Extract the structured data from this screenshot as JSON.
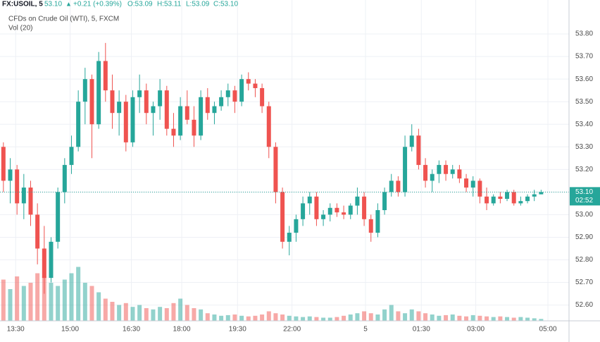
{
  "chart_data": {
    "type": "candlestick",
    "header": {
      "symbol": "FX:USOIL, 5",
      "price": "53.10",
      "change": "+0.21 (+0.39%)",
      "ohlc": [
        "O:53.09",
        "H:53.11",
        "L:53.09",
        "C:53.10"
      ]
    },
    "title": "CFDs on Crude Oil (WTI), 5, FXCM",
    "volume_label": "Vol (20)",
    "up_color": "#26a69a",
    "down_color": "#ef5350",
    "open": [
      53.3,
      53.15,
      53.2,
      53.05,
      53.12,
      53.0,
      52.85,
      52.72,
      52.88,
      53.1,
      53.22,
      53.3,
      53.5,
      53.6,
      53.4,
      53.68,
      53.55,
      53.45,
      53.5,
      53.32,
      53.52,
      53.55,
      53.45,
      53.48,
      53.55,
      53.38,
      53.35,
      53.48,
      53.42,
      53.35,
      53.52,
      53.45,
      53.48,
      53.52,
      53.55,
      53.5,
      53.6,
      53.58,
      53.56,
      53.48,
      53.3,
      53.1,
      52.88,
      52.92,
      52.98,
      53.05,
      53.08,
      52.98,
      53.0,
      53.03,
      53.01,
      53.0,
      53.04,
      53.08,
      52.98,
      52.92,
      53.02,
      53.1,
      53.15,
      53.1,
      53.3,
      53.35,
      53.22,
      53.15,
      53.18,
      53.22,
      53.18,
      53.2,
      53.16,
      53.12,
      53.15,
      53.08,
      53.05,
      53.08,
      53.07,
      53.1,
      53.05,
      53.06,
      53.08,
      53.09
    ],
    "high": [
      53.32,
      53.25,
      53.22,
      53.18,
      53.15,
      53.05,
      52.95,
      52.9,
      53.12,
      53.25,
      53.35,
      53.55,
      53.65,
      53.62,
      53.72,
      53.76,
      53.62,
      53.55,
      53.53,
      53.55,
      53.62,
      53.58,
      53.5,
      53.6,
      53.57,
      53.45,
      53.52,
      53.55,
      53.48,
      53.55,
      53.56,
      53.5,
      53.55,
      53.58,
      53.57,
      53.62,
      53.63,
      53.6,
      53.58,
      53.5,
      53.32,
      53.12,
      52.95,
      53.0,
      53.08,
      53.1,
      53.1,
      53.02,
      53.05,
      53.05,
      53.04,
      53.05,
      53.12,
      53.1,
      53.0,
      53.05,
      53.12,
      53.18,
      53.17,
      53.35,
      53.4,
      53.38,
      53.25,
      53.2,
      53.24,
      53.24,
      53.22,
      53.22,
      53.18,
      53.17,
      53.16,
      53.12,
      53.09,
      53.1,
      53.11,
      53.11,
      53.08,
      53.09,
      53.11,
      53.11
    ],
    "low": [
      53.1,
      53.05,
      53.0,
      52.98,
      52.95,
      52.78,
      52.65,
      52.7,
      52.85,
      53.05,
      53.18,
      53.28,
      53.4,
      53.25,
      53.38,
      53.5,
      53.38,
      53.35,
      53.28,
      53.3,
      53.45,
      53.4,
      53.35,
      53.42,
      53.35,
      53.3,
      53.33,
      53.4,
      53.3,
      53.33,
      53.42,
      53.4,
      53.46,
      53.48,
      53.45,
      53.48,
      53.55,
      53.52,
      53.45,
      53.25,
      53.05,
      52.85,
      52.82,
      52.88,
      52.95,
      53.0,
      52.95,
      52.95,
      52.97,
      52.99,
      52.98,
      52.98,
      53.0,
      52.95,
      52.88,
      52.9,
      53.0,
      53.08,
      53.08,
      53.08,
      53.28,
      53.2,
      53.12,
      53.1,
      53.14,
      53.15,
      53.16,
      53.14,
      53.1,
      53.08,
      53.05,
      53.02,
      53.04,
      53.05,
      53.06,
      53.04,
      53.04,
      53.05,
      53.06,
      53.09
    ],
    "close": [
      53.15,
      53.2,
      53.05,
      53.12,
      53.0,
      52.85,
      52.72,
      52.88,
      53.1,
      53.22,
      53.3,
      53.5,
      53.6,
      53.4,
      53.68,
      53.55,
      53.45,
      53.5,
      53.32,
      53.52,
      53.55,
      53.45,
      53.48,
      53.55,
      53.38,
      53.35,
      53.48,
      53.42,
      53.35,
      53.52,
      53.45,
      53.48,
      53.52,
      53.55,
      53.5,
      53.6,
      53.58,
      53.56,
      53.48,
      53.3,
      53.1,
      52.88,
      52.92,
      52.98,
      53.05,
      53.08,
      52.98,
      53.0,
      53.03,
      53.01,
      53.0,
      53.04,
      53.08,
      52.98,
      52.92,
      53.02,
      53.1,
      53.15,
      53.1,
      53.3,
      53.35,
      53.22,
      53.15,
      53.18,
      53.22,
      53.18,
      53.2,
      53.16,
      53.12,
      53.15,
      53.08,
      53.05,
      53.08,
      53.07,
      53.1,
      53.05,
      53.06,
      53.08,
      53.09,
      53.1
    ],
    "volume": [
      65,
      50,
      70,
      55,
      60,
      75,
      70,
      60,
      55,
      65,
      75,
      85,
      60,
      55,
      45,
      35,
      30,
      25,
      28,
      22,
      25,
      20,
      18,
      22,
      20,
      28,
      35,
      25,
      20,
      18,
      12,
      10,
      8,
      9,
      10,
      8,
      7,
      8,
      10,
      15,
      12,
      10,
      8,
      7,
      6,
      7,
      6,
      5,
      5,
      6,
      8,
      10,
      12,
      15,
      12,
      10,
      18,
      25,
      15,
      12,
      18,
      15,
      12,
      10,
      8,
      9,
      10,
      8,
      7,
      9,
      8,
      7,
      6,
      7,
      6,
      5,
      6,
      5,
      4,
      3
    ],
    "vlim": [
      0,
      100
    ],
    "xlim": [
      -0.5,
      83.1
    ],
    "xticks": [
      {
        "value": 1.8,
        "label": "13:30"
      },
      {
        "value": 9.8,
        "label": "15:00"
      },
      {
        "value": 18.8,
        "label": "16:30"
      },
      {
        "value": 26.2,
        "label": "18:00"
      },
      {
        "value": 34.4,
        "label": "19:30"
      },
      {
        "value": 42.4,
        "label": "22:00"
      },
      {
        "value": 53.2,
        "label": "5"
      },
      {
        "value": 61.4,
        "label": "01:30"
      },
      {
        "value": 69.4,
        "label": "03:00"
      },
      {
        "value": 80.0,
        "label": "05:00"
      }
    ],
    "ylim": [
      52.53,
      53.95
    ],
    "yticks": [
      {
        "value": 52.6,
        "label": "52.60"
      },
      {
        "value": 52.7,
        "label": "52.70"
      },
      {
        "value": 52.8,
        "label": "52.80"
      },
      {
        "value": 52.9,
        "label": "52.90"
      },
      {
        "value": 53.0,
        "label": "53.00"
      },
      {
        "value": 53.1,
        "label": "53.10"
      },
      {
        "value": 53.2,
        "label": "53.20"
      },
      {
        "value": 53.3,
        "label": "53.30"
      },
      {
        "value": 53.4,
        "label": "53.40"
      },
      {
        "value": 53.5,
        "label": "53.50"
      },
      {
        "value": 53.6,
        "label": "53.60"
      },
      {
        "value": 53.7,
        "label": "53.70"
      },
      {
        "value": 53.8,
        "label": "53.80"
      }
    ],
    "grid": true,
    "last_price": {
      "value": 53.1,
      "label": "53.10",
      "countdown": "02:52"
    }
  }
}
